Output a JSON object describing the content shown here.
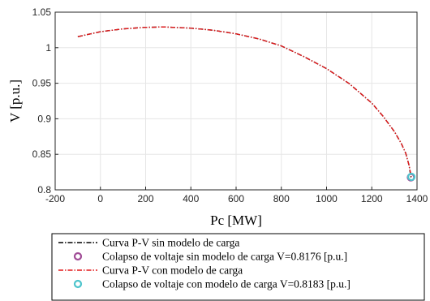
{
  "chart_data": {
    "type": "line",
    "title": "",
    "xlabel": "Pc [MW]",
    "ylabel": "V [p.u.]",
    "xlim": [
      -200,
      1400
    ],
    "ylim": [
      0.8,
      1.05
    ],
    "xticks": [
      -200,
      0,
      200,
      400,
      600,
      800,
      1000,
      1200,
      1400
    ],
    "yticks": [
      0.8,
      0.85,
      0.9,
      0.95,
      1,
      1.05
    ],
    "xtick_labels": [
      "-200",
      "0",
      "200",
      "400",
      "600",
      "800",
      "1000",
      "1200",
      "1400"
    ],
    "ytick_labels": [
      "0.8",
      "0.85",
      "0.9",
      "0.95",
      "1",
      "1.05"
    ],
    "grid": true,
    "legend_position": "bottom-outside",
    "series": [
      {
        "name": "Curva P-V sin modelo de carga",
        "style": "dash-dot",
        "color": "#000000",
        "x": [
          -100,
          0,
          100,
          200,
          280,
          400,
          500,
          600,
          700,
          800,
          900,
          1000,
          1100,
          1200,
          1250,
          1300,
          1330,
          1350,
          1365,
          1373
        ],
        "y": [
          1.0155,
          1.0225,
          1.0265,
          1.0287,
          1.0292,
          1.0275,
          1.0245,
          1.0195,
          1.0125,
          1.0025,
          0.9875,
          0.9705,
          0.9495,
          0.922,
          0.9035,
          0.882,
          0.8655,
          0.8515,
          0.8345,
          0.8176
        ]
      },
      {
        "name": "Colapso de voltaje sin modelo de carga V=0.8176 [p.u.]",
        "style": "circle-marker",
        "color": "#a04c96",
        "x": [
          1373
        ],
        "y": [
          0.8176
        ]
      },
      {
        "name": "Curva P-V con modelo de carga",
        "style": "dash-dot",
        "color": "#e31a1c",
        "x": [
          -100,
          0,
          100,
          200,
          280,
          400,
          500,
          600,
          700,
          800,
          900,
          1000,
          1100,
          1200,
          1250,
          1300,
          1330,
          1350,
          1365,
          1375
        ],
        "y": [
          1.0155,
          1.0225,
          1.0265,
          1.0287,
          1.0292,
          1.0275,
          1.0245,
          1.0195,
          1.0125,
          1.0025,
          0.9875,
          0.9705,
          0.9495,
          0.922,
          0.9035,
          0.882,
          0.8655,
          0.8515,
          0.8345,
          0.8183
        ]
      },
      {
        "name": "Colapso de voltaje con modelo de carga V=0.8183 [p.u.]",
        "style": "circle-marker",
        "color": "#4dc4cc",
        "x": [
          1375
        ],
        "y": [
          0.8183
        ]
      }
    ]
  }
}
